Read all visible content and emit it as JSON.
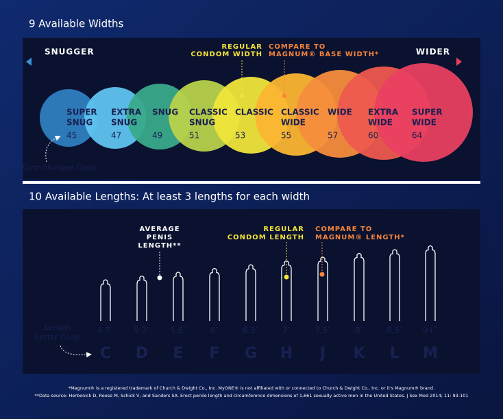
{
  "widths": {
    "title": "9 Available Widths",
    "left_label": "SNUGGER",
    "right_label": "WIDER",
    "regular_label": [
      "REGULAR",
      "CONDOM WIDTH"
    ],
    "compare_label": [
      "COMPARE TO",
      "MAGNUM® BASE WIDTH*"
    ],
    "code_label": "Girth Number Code",
    "items": [
      {
        "name": [
          "SUPER",
          "SNUG"
        ],
        "code": "45"
      },
      {
        "name": [
          "EXTRA",
          "SNUG"
        ],
        "code": "47"
      },
      {
        "name": [
          "SNUG"
        ],
        "code": "49"
      },
      {
        "name": [
          "CLASSIC",
          "SNUG"
        ],
        "code": "51"
      },
      {
        "name": [
          "CLASSIC"
        ],
        "code": "53"
      },
      {
        "name": [
          "CLASSIC",
          "WIDE"
        ],
        "code": "55"
      },
      {
        "name": [
          "WIDE"
        ],
        "code": "57"
      },
      {
        "name": [
          "EXTRA",
          "WIDE"
        ],
        "code": "60"
      },
      {
        "name": [
          "SUPER",
          "WIDE"
        ],
        "code": "64"
      }
    ]
  },
  "lengths": {
    "title": "10 Available Lengths: At least 3 lengths for each width",
    "average_label": [
      "AVERAGE",
      "PENIS",
      "LENGTH**"
    ],
    "regular_label": [
      "REGULAR",
      "CONDOM LENGTH"
    ],
    "compare_label": [
      "COMPARE TO",
      "MAGNUM® LENGTH*"
    ],
    "code_label": [
      "Length",
      "Letter Code"
    ],
    "items": [
      {
        "length": "4.7″",
        "code": "C"
      },
      {
        "length": "5.2″",
        "code": "D"
      },
      {
        "length": "5.6″",
        "code": "E"
      },
      {
        "length": "6″",
        "code": "F"
      },
      {
        "length": "6.5″",
        "code": "G"
      },
      {
        "length": "7″",
        "code": "H"
      },
      {
        "length": "7.5″",
        "code": "J"
      },
      {
        "length": "8″",
        "code": "K"
      },
      {
        "length": "8.5″",
        "code": "L"
      },
      {
        "length": "9+″",
        "code": "M"
      }
    ]
  },
  "footnotes": [
    "*Magnum® is a registered trademark of Church & Dwight Co., Inc. MyONE® is not affiliated with or connected to Church & Dwight Co., Inc. or it's Magnum® brand.",
    "**Data source: Herbenick D, Reese M, Schick V, and Sanders SA. Erect penile length and circumference dimensions of 1,661 sexually active men in the United States. J Sex Med 2014; 11: 93-101"
  ]
}
